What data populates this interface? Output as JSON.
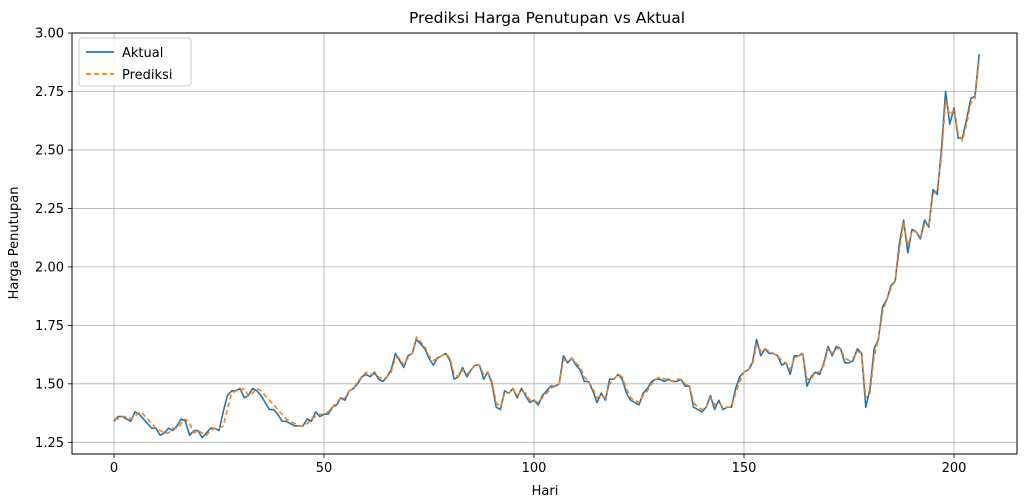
{
  "chart_data": {
    "type": "line",
    "title": "Prediksi Harga Penutupan vs Aktual",
    "xlabel": "Hari",
    "ylabel": "Harga Penutupan",
    "xlim": [
      -10,
      215
    ],
    "ylim": [
      1.2,
      3.0
    ],
    "xticks": [
      0,
      50,
      100,
      150,
      200
    ],
    "yticks": [
      1.25,
      1.5,
      1.75,
      2.0,
      2.25,
      2.5,
      2.75,
      3.0
    ],
    "xtick_labels": [
      "0",
      "50",
      "100",
      "150",
      "200"
    ],
    "ytick_labels": [
      "1.25",
      "1.50",
      "1.75",
      "2.00",
      "2.25",
      "2.50",
      "2.75",
      "3.00"
    ],
    "grid": true,
    "legend_position": "upper-left",
    "series": [
      {
        "name": "Aktual",
        "color": "#1f77b4",
        "style": "solid",
        "values": [
          1.34,
          1.36,
          1.36,
          1.35,
          1.34,
          1.38,
          1.37,
          1.35,
          1.33,
          1.31,
          1.31,
          1.28,
          1.29,
          1.31,
          1.3,
          1.32,
          1.35,
          1.34,
          1.28,
          1.3,
          1.3,
          1.27,
          1.29,
          1.31,
          1.31,
          1.3,
          1.38,
          1.45,
          1.47,
          1.47,
          1.48,
          1.44,
          1.45,
          1.48,
          1.47,
          1.45,
          1.42,
          1.39,
          1.39,
          1.37,
          1.34,
          1.34,
          1.33,
          1.32,
          1.32,
          1.32,
          1.35,
          1.34,
          1.38,
          1.36,
          1.37,
          1.37,
          1.4,
          1.41,
          1.44,
          1.43,
          1.47,
          1.48,
          1.5,
          1.53,
          1.54,
          1.53,
          1.55,
          1.52,
          1.51,
          1.53,
          1.56,
          1.63,
          1.6,
          1.57,
          1.62,
          1.63,
          1.69,
          1.67,
          1.65,
          1.61,
          1.58,
          1.61,
          1.62,
          1.63,
          1.6,
          1.52,
          1.53,
          1.57,
          1.53,
          1.56,
          1.58,
          1.58,
          1.52,
          1.55,
          1.5,
          1.4,
          1.39,
          1.47,
          1.46,
          1.48,
          1.44,
          1.48,
          1.45,
          1.42,
          1.43,
          1.41,
          1.45,
          1.47,
          1.49,
          1.49,
          1.5,
          1.62,
          1.59,
          1.61,
          1.58,
          1.56,
          1.51,
          1.51,
          1.47,
          1.42,
          1.46,
          1.43,
          1.52,
          1.52,
          1.54,
          1.52,
          1.46,
          1.43,
          1.42,
          1.41,
          1.46,
          1.48,
          1.51,
          1.52,
          1.52,
          1.51,
          1.52,
          1.51,
          1.51,
          1.52,
          1.49,
          1.49,
          1.4,
          1.39,
          1.38,
          1.4,
          1.45,
          1.39,
          1.43,
          1.39,
          1.4,
          1.4,
          1.48,
          1.53,
          1.55,
          1.56,
          1.59,
          1.69,
          1.62,
          1.65,
          1.63,
          1.63,
          1.62,
          1.58,
          1.59,
          1.54,
          1.62,
          1.62,
          1.63,
          1.49,
          1.53,
          1.55,
          1.54,
          1.59,
          1.66,
          1.62,
          1.66,
          1.65,
          1.59,
          1.59,
          1.6,
          1.65,
          1.63,
          1.4,
          1.48,
          1.65,
          1.69,
          1.83,
          1.86,
          1.92,
          1.94,
          2.1,
          2.2,
          2.06,
          2.16,
          2.15,
          2.12,
          2.2,
          2.17,
          2.33,
          2.31,
          2.5,
          2.75,
          2.61,
          2.68,
          2.55,
          2.55,
          2.63,
          2.72,
          2.73,
          2.91
        ]
      },
      {
        "name": "Prediksi",
        "color": "#ff7f0e",
        "style": "dashed",
        "values": [
          1.35,
          1.35,
          1.36,
          1.36,
          1.35,
          1.36,
          1.38,
          1.37,
          1.35,
          1.33,
          1.31,
          1.3,
          1.29,
          1.29,
          1.31,
          1.31,
          1.33,
          1.35,
          1.33,
          1.29,
          1.3,
          1.29,
          1.28,
          1.3,
          1.31,
          1.31,
          1.32,
          1.39,
          1.46,
          1.47,
          1.47,
          1.48,
          1.45,
          1.46,
          1.48,
          1.47,
          1.45,
          1.43,
          1.41,
          1.39,
          1.37,
          1.35,
          1.34,
          1.33,
          1.32,
          1.32,
          1.33,
          1.35,
          1.36,
          1.37,
          1.37,
          1.38,
          1.4,
          1.42,
          1.44,
          1.44,
          1.47,
          1.48,
          1.51,
          1.53,
          1.55,
          1.54,
          1.54,
          1.53,
          1.52,
          1.53,
          1.55,
          1.61,
          1.61,
          1.58,
          1.61,
          1.63,
          1.7,
          1.68,
          1.66,
          1.62,
          1.6,
          1.61,
          1.62,
          1.63,
          1.61,
          1.54,
          1.53,
          1.56,
          1.54,
          1.56,
          1.58,
          1.58,
          1.54,
          1.55,
          1.51,
          1.42,
          1.4,
          1.46,
          1.46,
          1.48,
          1.45,
          1.47,
          1.46,
          1.43,
          1.43,
          1.42,
          1.44,
          1.46,
          1.48,
          1.49,
          1.5,
          1.6,
          1.6,
          1.61,
          1.59,
          1.57,
          1.53,
          1.51,
          1.48,
          1.44,
          1.45,
          1.44,
          1.5,
          1.52,
          1.54,
          1.53,
          1.48,
          1.44,
          1.43,
          1.42,
          1.45,
          1.47,
          1.5,
          1.52,
          1.53,
          1.52,
          1.52,
          1.51,
          1.52,
          1.52,
          1.5,
          1.49,
          1.42,
          1.4,
          1.39,
          1.4,
          1.44,
          1.41,
          1.42,
          1.4,
          1.4,
          1.4,
          1.46,
          1.51,
          1.55,
          1.56,
          1.58,
          1.67,
          1.64,
          1.65,
          1.64,
          1.63,
          1.62,
          1.6,
          1.59,
          1.56,
          1.61,
          1.62,
          1.63,
          1.52,
          1.52,
          1.55,
          1.55,
          1.58,
          1.65,
          1.63,
          1.65,
          1.65,
          1.61,
          1.6,
          1.61,
          1.64,
          1.63,
          1.44,
          1.46,
          1.62,
          1.69,
          1.81,
          1.86,
          1.91,
          1.94,
          2.07,
          2.19,
          2.09,
          2.15,
          2.15,
          2.13,
          2.18,
          2.18,
          2.31,
          2.33,
          2.47,
          2.71,
          2.65,
          2.67,
          2.57,
          2.54,
          2.61,
          2.7,
          2.72,
          2.89
        ]
      }
    ]
  }
}
